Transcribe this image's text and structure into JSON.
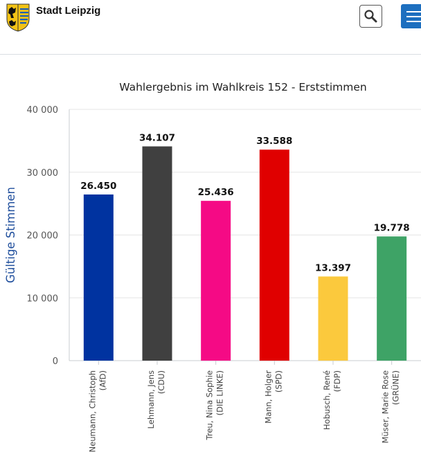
{
  "header": {
    "site_name": "Stadt Leipzig",
    "search_icon": "search-icon",
    "menu_icon": "hamburger-menu-icon"
  },
  "colors": {
    "menu_button": "#1d6fbf",
    "ylabel": "#1f4e9c",
    "grid": "#e6e6e6"
  },
  "chart_data": {
    "type": "bar",
    "title": "Wahlergebnis im Wahlkreis 152 - Erststimmen",
    "ylabel": "Gültige Stimmen",
    "xlabel": "",
    "ylim": [
      0,
      40000
    ],
    "yticks": [
      0,
      10000,
      20000,
      30000,
      40000
    ],
    "ytick_labels": [
      "0",
      "10 000",
      "20 000",
      "30 000",
      "40 000"
    ],
    "grid": true,
    "categories": [
      [
        "Neumann, Christoph",
        "(AfD)"
      ],
      [
        "Lehmann, Jens",
        "(CDU)"
      ],
      [
        "Treu, Nina Sophie",
        "(DIE LINKE)"
      ],
      [
        "Mann, Holger",
        "(SPD)"
      ],
      [
        "Hobusch, René",
        "(FDP)"
      ],
      [
        "Müser, Marie Rose",
        "(GRÜNE)"
      ]
    ],
    "values": [
      26450,
      34107,
      25436,
      33588,
      13397,
      19778
    ],
    "data_labels": [
      "26.450",
      "34.107",
      "25.436",
      "33.588",
      "13.397",
      "19.778"
    ],
    "colors": [
      "#0033a0",
      "#404040",
      "#f50a85",
      "#e00000",
      "#fbc93d",
      "#3ea366"
    ]
  }
}
